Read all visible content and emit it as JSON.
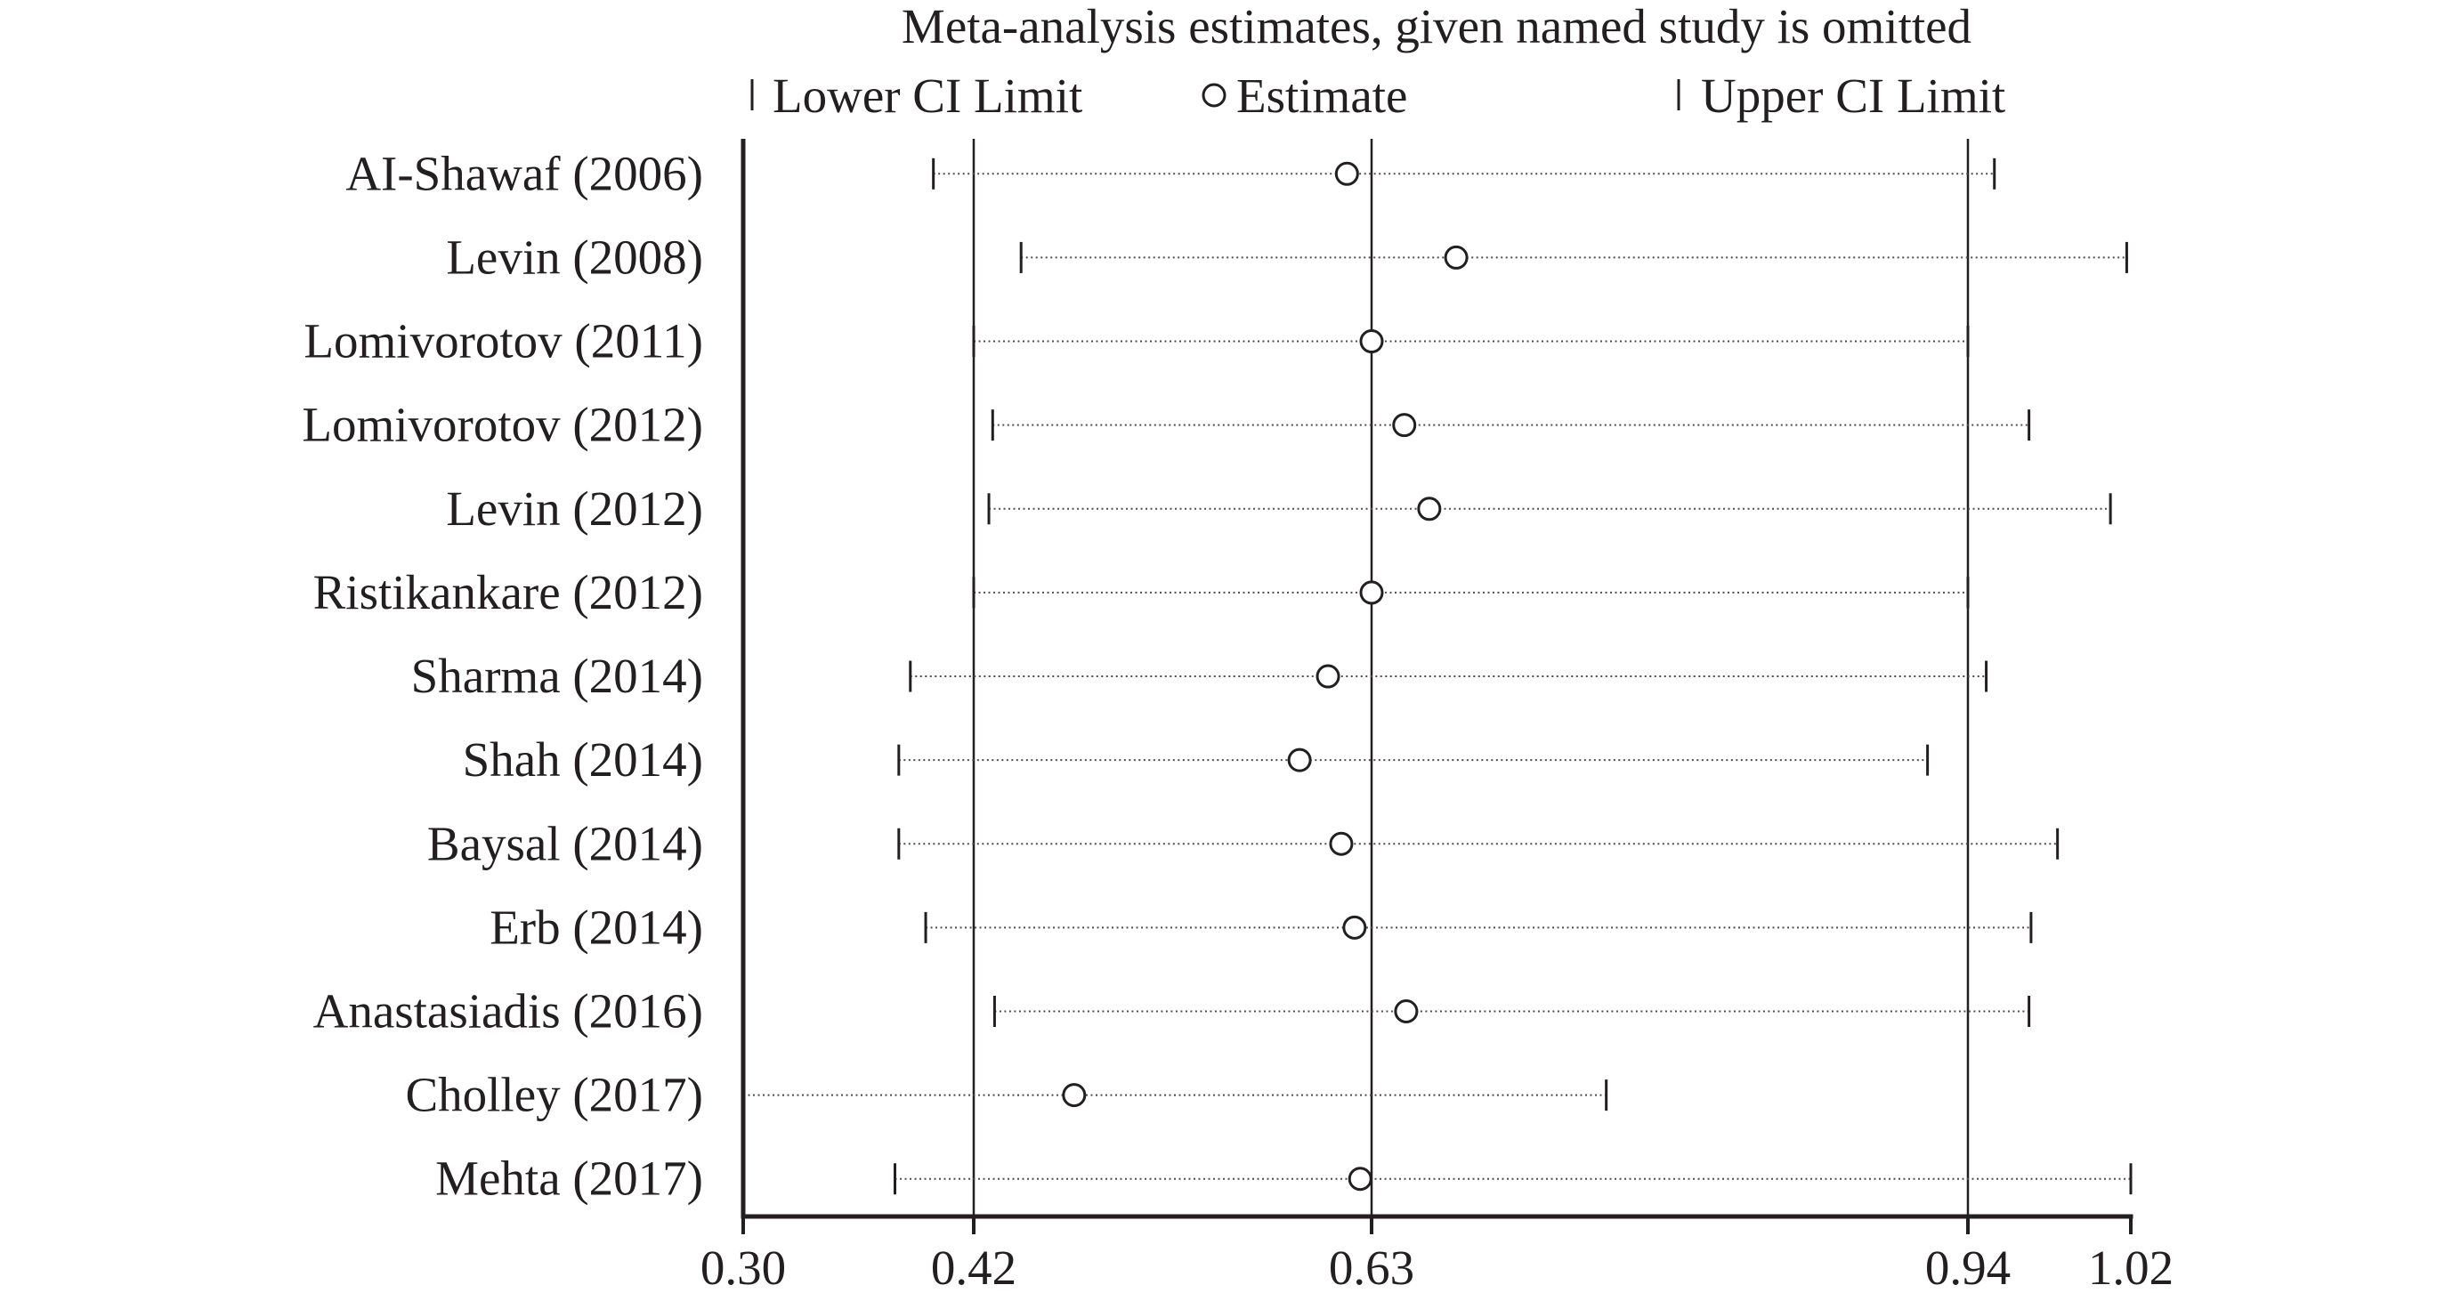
{
  "chart_data": {
    "type": "scatter",
    "orientation": "horizontal",
    "title": "Meta-analysis estimates, given named study is omitted",
    "legend_position": "top",
    "categories": [
      "AI-Shawaf (2006)",
      "Levin (2008)",
      "Lomivorotov (2011)",
      "Lomivorotov (2012)",
      "Levin (2012)",
      "Ristikankare (2012)",
      "Sharma (2014)",
      "Shah (2014)",
      "Baysal (2014)",
      "Erb (2014)",
      "Anastasiadis (2016)",
      "Cholley (2017)",
      "Mehta (2017)"
    ],
    "series": [
      {
        "name": "Lower CI Limit",
        "values": [
          0.399,
          0.445,
          0.42,
          0.43,
          0.428,
          0.42,
          0.387,
          0.381,
          0.381,
          0.395,
          0.431,
          0.3,
          0.379
        ]
      },
      {
        "name": "Estimate",
        "values": [
          0.617,
          0.674,
          0.63,
          0.647,
          0.66,
          0.63,
          0.607,
          0.592,
          0.614,
          0.621,
          0.648,
          0.473,
          0.624
        ]
      },
      {
        "name": "Upper CI Limit",
        "values": [
          0.953,
          1.018,
          0.94,
          0.97,
          1.01,
          0.94,
          0.949,
          0.919,
          0.984,
          0.971,
          0.97,
          0.752,
          1.02
        ]
      }
    ],
    "xticks": [
      "0.30",
      "0.42",
      "0.63",
      "0.94",
      "1.02"
    ],
    "xlim": [
      0.3,
      1.02
    ],
    "reference_lines": [
      0.42,
      0.63,
      0.94
    ],
    "xlabel": "",
    "ylabel": "",
    "grid": false,
    "colors": {
      "ink": "#231f20",
      "ci_line": "#4d4d4d",
      "marker_fill": "#ffffff"
    }
  }
}
